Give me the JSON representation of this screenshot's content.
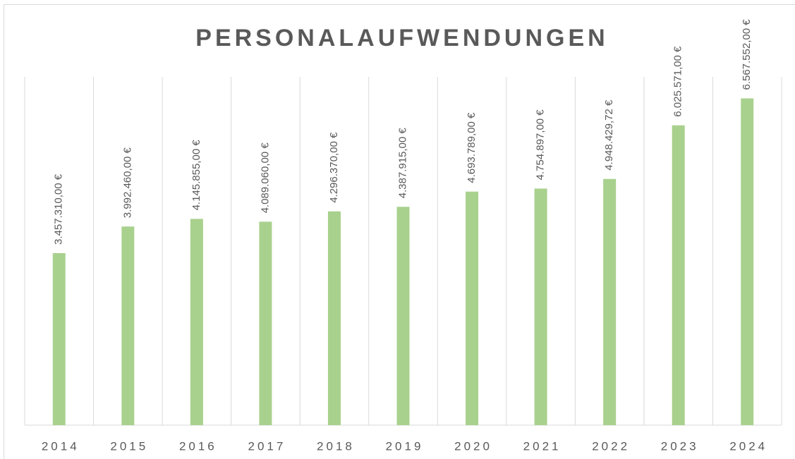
{
  "chart_data": {
    "type": "bar",
    "title": "PERSONALAUFWENDUNGEN",
    "categories": [
      "2014",
      "2015",
      "2016",
      "2017",
      "2018",
      "2019",
      "2020",
      "2021",
      "2022",
      "2023",
      "2024"
    ],
    "values": [
      3457310,
      3992460,
      4145855,
      4089060,
      4296370,
      4387915,
      4693789,
      4754897,
      4948429.72,
      6025571,
      6567552
    ],
    "value_labels": [
      "3.457.310,00 €",
      "3.992.460,00 €",
      "4.145.855,00 €",
      "4.089.060,00 €",
      "4.296.370,00 €",
      "4.387.915,00 €",
      "4.693.789,00 €",
      "4.754.897,00 €",
      "4.948.429,72 €",
      "6.025.571,00 €",
      "6.567.552,00 €"
    ],
    "color": "#a9d18e",
    "ylim": [
      0,
      7000000
    ]
  }
}
